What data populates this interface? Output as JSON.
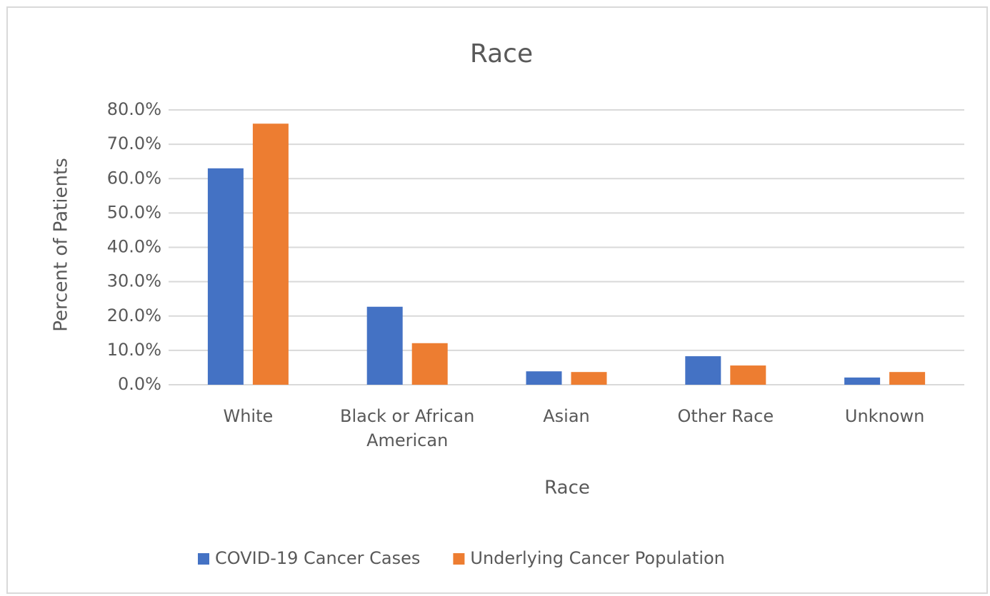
{
  "chart_data": {
    "type": "bar",
    "title": "Race",
    "x_label": "Race",
    "y_label": "Percent of Patients",
    "categories": [
      "White",
      "Black or African American",
      "Asian",
      "Other Race",
      "Unknown"
    ],
    "series": [
      {
        "name": "COVID-19 Cancer Cases",
        "color": "#4472c4",
        "values": [
          63.0,
          22.7,
          3.9,
          8.3,
          2.1
        ]
      },
      {
        "name": "Underlying Cancer Population",
        "color": "#ed7d31",
        "values": [
          76.0,
          12.1,
          3.7,
          5.6,
          3.7
        ]
      }
    ],
    "ylim": [
      0,
      80
    ],
    "yticks": [
      {
        "value": 0,
        "label": "0.0%"
      },
      {
        "value": 10,
        "label": "10.0%"
      },
      {
        "value": 20,
        "label": "20.0%"
      },
      {
        "value": 30,
        "label": "30.0%"
      },
      {
        "value": 40,
        "label": "40.0%"
      },
      {
        "value": 50,
        "label": "50.0%"
      },
      {
        "value": 60,
        "label": "60.0%"
      },
      {
        "value": 70,
        "label": "70.0%"
      },
      {
        "value": 80,
        "label": "80.0%"
      }
    ],
    "grid": true,
    "legend": "bottom"
  }
}
